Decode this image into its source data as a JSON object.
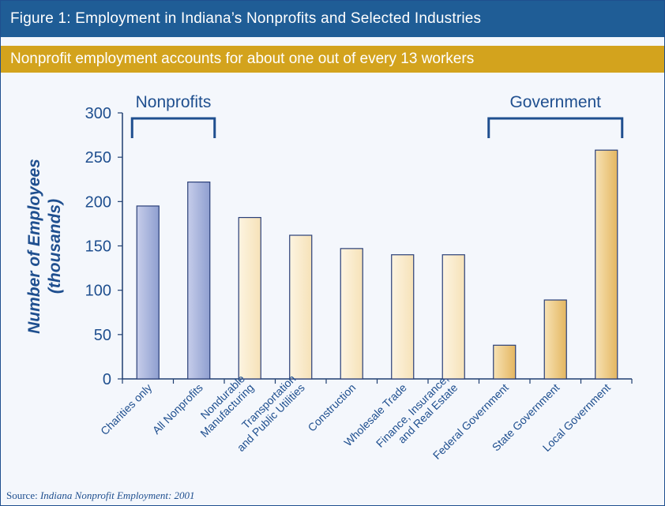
{
  "header": {
    "title": "Figure 1: Employment in Indiana’s Nonprofits and Selected Industries",
    "subtitle": "Nonprofit employment accounts for about one out of every 13 workers"
  },
  "source": {
    "prefix": "Source: ",
    "title": "Indiana Nonprofit Employment: 2001"
  },
  "colors": {
    "title_bar": "#1f5d96",
    "subtitle_bar": "#d3a31d",
    "axis_text": "#1f4f8f",
    "nonprofit_bar": "#8f9fd0",
    "industry_bar": "#f6e2b8",
    "government_bar": "#e4b660"
  },
  "chart_data": {
    "type": "bar",
    "ylabel": "Number of Employees",
    "ylabel_sub": "(thousands)",
    "ylim": [
      0,
      300
    ],
    "yticks": [
      0,
      50,
      100,
      150,
      200,
      250,
      300
    ],
    "grid": false,
    "categories": [
      "Charities only",
      "All Nonprofits",
      "Nondurable Manufacturing",
      "Transportation and Public Utilities",
      "Construction",
      "Wholesale Trade",
      "Finance, Insurance, and Real Estate",
      "Federal Government",
      "State Government",
      "Local Government"
    ],
    "category_lines": [
      [
        "Charities only"
      ],
      [
        "All Nonprofits"
      ],
      [
        "Nondurable",
        "Manufacturing"
      ],
      [
        "Transportation",
        "and Public Utilities"
      ],
      [
        "Construction"
      ],
      [
        "Wholesale Trade"
      ],
      [
        "Finance, Insurance,",
        "and Real Estate"
      ],
      [
        "Federal Government"
      ],
      [
        "State Government"
      ],
      [
        "Local Government"
      ]
    ],
    "values": [
      195,
      222,
      182,
      162,
      147,
      140,
      140,
      38,
      89,
      258
    ],
    "groups": [
      {
        "label": "Nonprofits",
        "from": 0,
        "to": 1,
        "color_key": "nonprofit_bar"
      },
      {
        "label": "Government",
        "from": 7,
        "to": 9,
        "color_key": "government_bar"
      }
    ]
  }
}
